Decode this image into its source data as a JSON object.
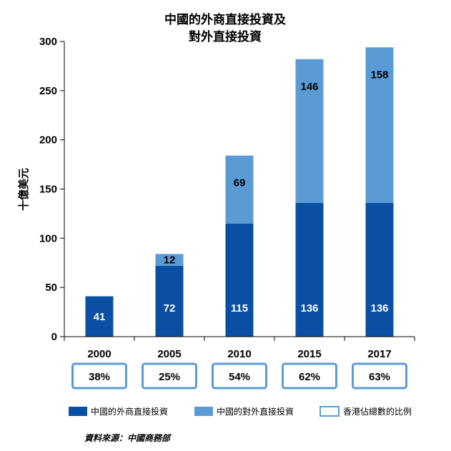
{
  "chart_data": {
    "type": "bar",
    "stacked": true,
    "title_lines": [
      "中國的外商直接投資及",
      "對外直接投資"
    ],
    "ylabel": "十億美元",
    "ylim": [
      0,
      300
    ],
    "yticks": [
      "0",
      "50",
      "100",
      "150",
      "200",
      "250",
      "300"
    ],
    "categories": [
      "2000",
      "2005",
      "2010",
      "2015",
      "2017"
    ],
    "series": [
      {
        "name": "中國的外商直接投資",
        "values": [
          41,
          72,
          115,
          136,
          136
        ],
        "labels": [
          "41",
          "72",
          "115",
          "136",
          "136"
        ],
        "color": "#0a4fa3"
      },
      {
        "name": "中國的對外直接投資",
        "values": [
          null,
          12,
          69,
          146,
          158
        ],
        "labels": [
          "",
          "12",
          "69",
          "146",
          "158"
        ],
        "color": "#5b9bd5"
      }
    ],
    "hk_share": {
      "name": "香港佔總數的比例",
      "values": [
        "38%",
        "25%",
        "54%",
        "62%",
        "63%"
      ],
      "box_color": "#5b9bd5"
    },
    "legend_position": "bottom",
    "grid": false,
    "source": "資料來源：中國商務部"
  }
}
